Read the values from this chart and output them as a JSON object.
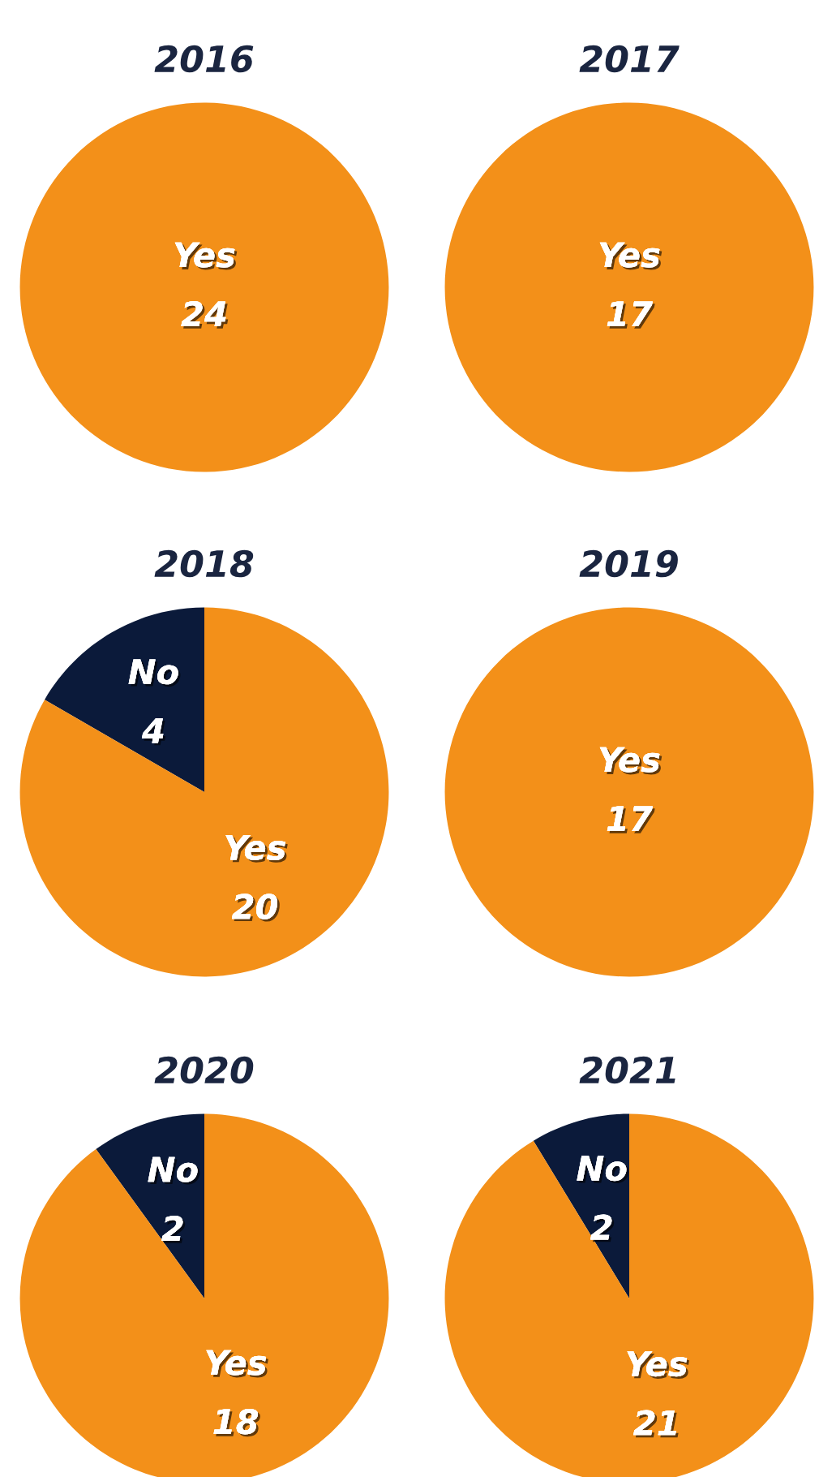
{
  "chart_data": [
    {
      "type": "pie",
      "title": "2016",
      "categories": [
        "Yes"
      ],
      "values": [
        24
      ],
      "colors": [
        "#f39019"
      ],
      "data_labels": true
    },
    {
      "type": "pie",
      "title": "2017",
      "categories": [
        "Yes"
      ],
      "values": [
        17
      ],
      "colors": [
        "#f39019"
      ],
      "data_labels": true
    },
    {
      "type": "pie",
      "title": "2018",
      "categories": [
        "No",
        "Yes"
      ],
      "values": [
        4,
        20
      ],
      "colors": [
        "#0b1a3a",
        "#f39019"
      ],
      "data_labels": true
    },
    {
      "type": "pie",
      "title": "2019",
      "categories": [
        "Yes"
      ],
      "values": [
        17
      ],
      "colors": [
        "#f39019"
      ],
      "data_labels": true
    },
    {
      "type": "pie",
      "title": "2020",
      "categories": [
        "No",
        "Yes"
      ],
      "values": [
        2,
        18
      ],
      "colors": [
        "#0b1a3a",
        "#f39019"
      ],
      "data_labels": true
    },
    {
      "type": "pie",
      "title": "2021",
      "categories": [
        "No",
        "Yes"
      ],
      "values": [
        2,
        21
      ],
      "colors": [
        "#0b1a3a",
        "#f39019"
      ],
      "data_labels": true
    }
  ]
}
